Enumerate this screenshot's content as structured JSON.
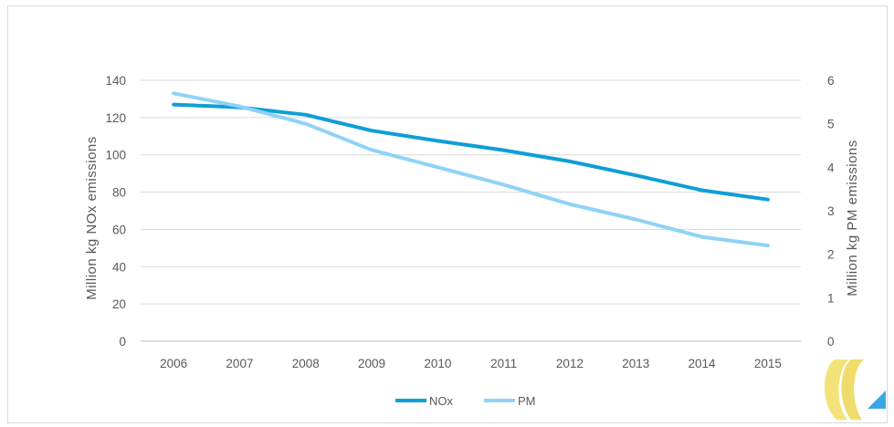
{
  "chart_data": {
    "type": "line",
    "title": "",
    "categories": [
      "2006",
      "2007",
      "2008",
      "2009",
      "2010",
      "2011",
      "2012",
      "2013",
      "2014",
      "2015"
    ],
    "ylabel": "Million kg NOx emissions",
    "y2label": "Million kg PM emissions",
    "ylim": [
      0,
      140
    ],
    "y2lim": [
      0,
      6
    ],
    "yticks": [
      "0",
      "20",
      "40",
      "60",
      "80",
      "100",
      "120",
      "140"
    ],
    "y2ticks": [
      "0",
      "1",
      "2",
      "3",
      "4",
      "5",
      "6"
    ],
    "grid": true,
    "legend_position": "bottom",
    "series": [
      {
        "name": "NOx",
        "axis": "left",
        "color": "#0e9ed8",
        "values": [
          127,
          125.5,
          121.5,
          113,
          107.5,
          102.5,
          96.5,
          89,
          81,
          76
        ]
      },
      {
        "name": "PM",
        "axis": "right",
        "color": "#8fd3f6",
        "values": [
          5.7,
          5.4,
          5.0,
          4.4,
          4.0,
          3.6,
          3.15,
          2.8,
          2.4,
          2.2
        ]
      }
    ]
  },
  "logo": {
    "name": "brand-logo",
    "colors": [
      "#f3e27a",
      "#3aa8e4"
    ]
  }
}
